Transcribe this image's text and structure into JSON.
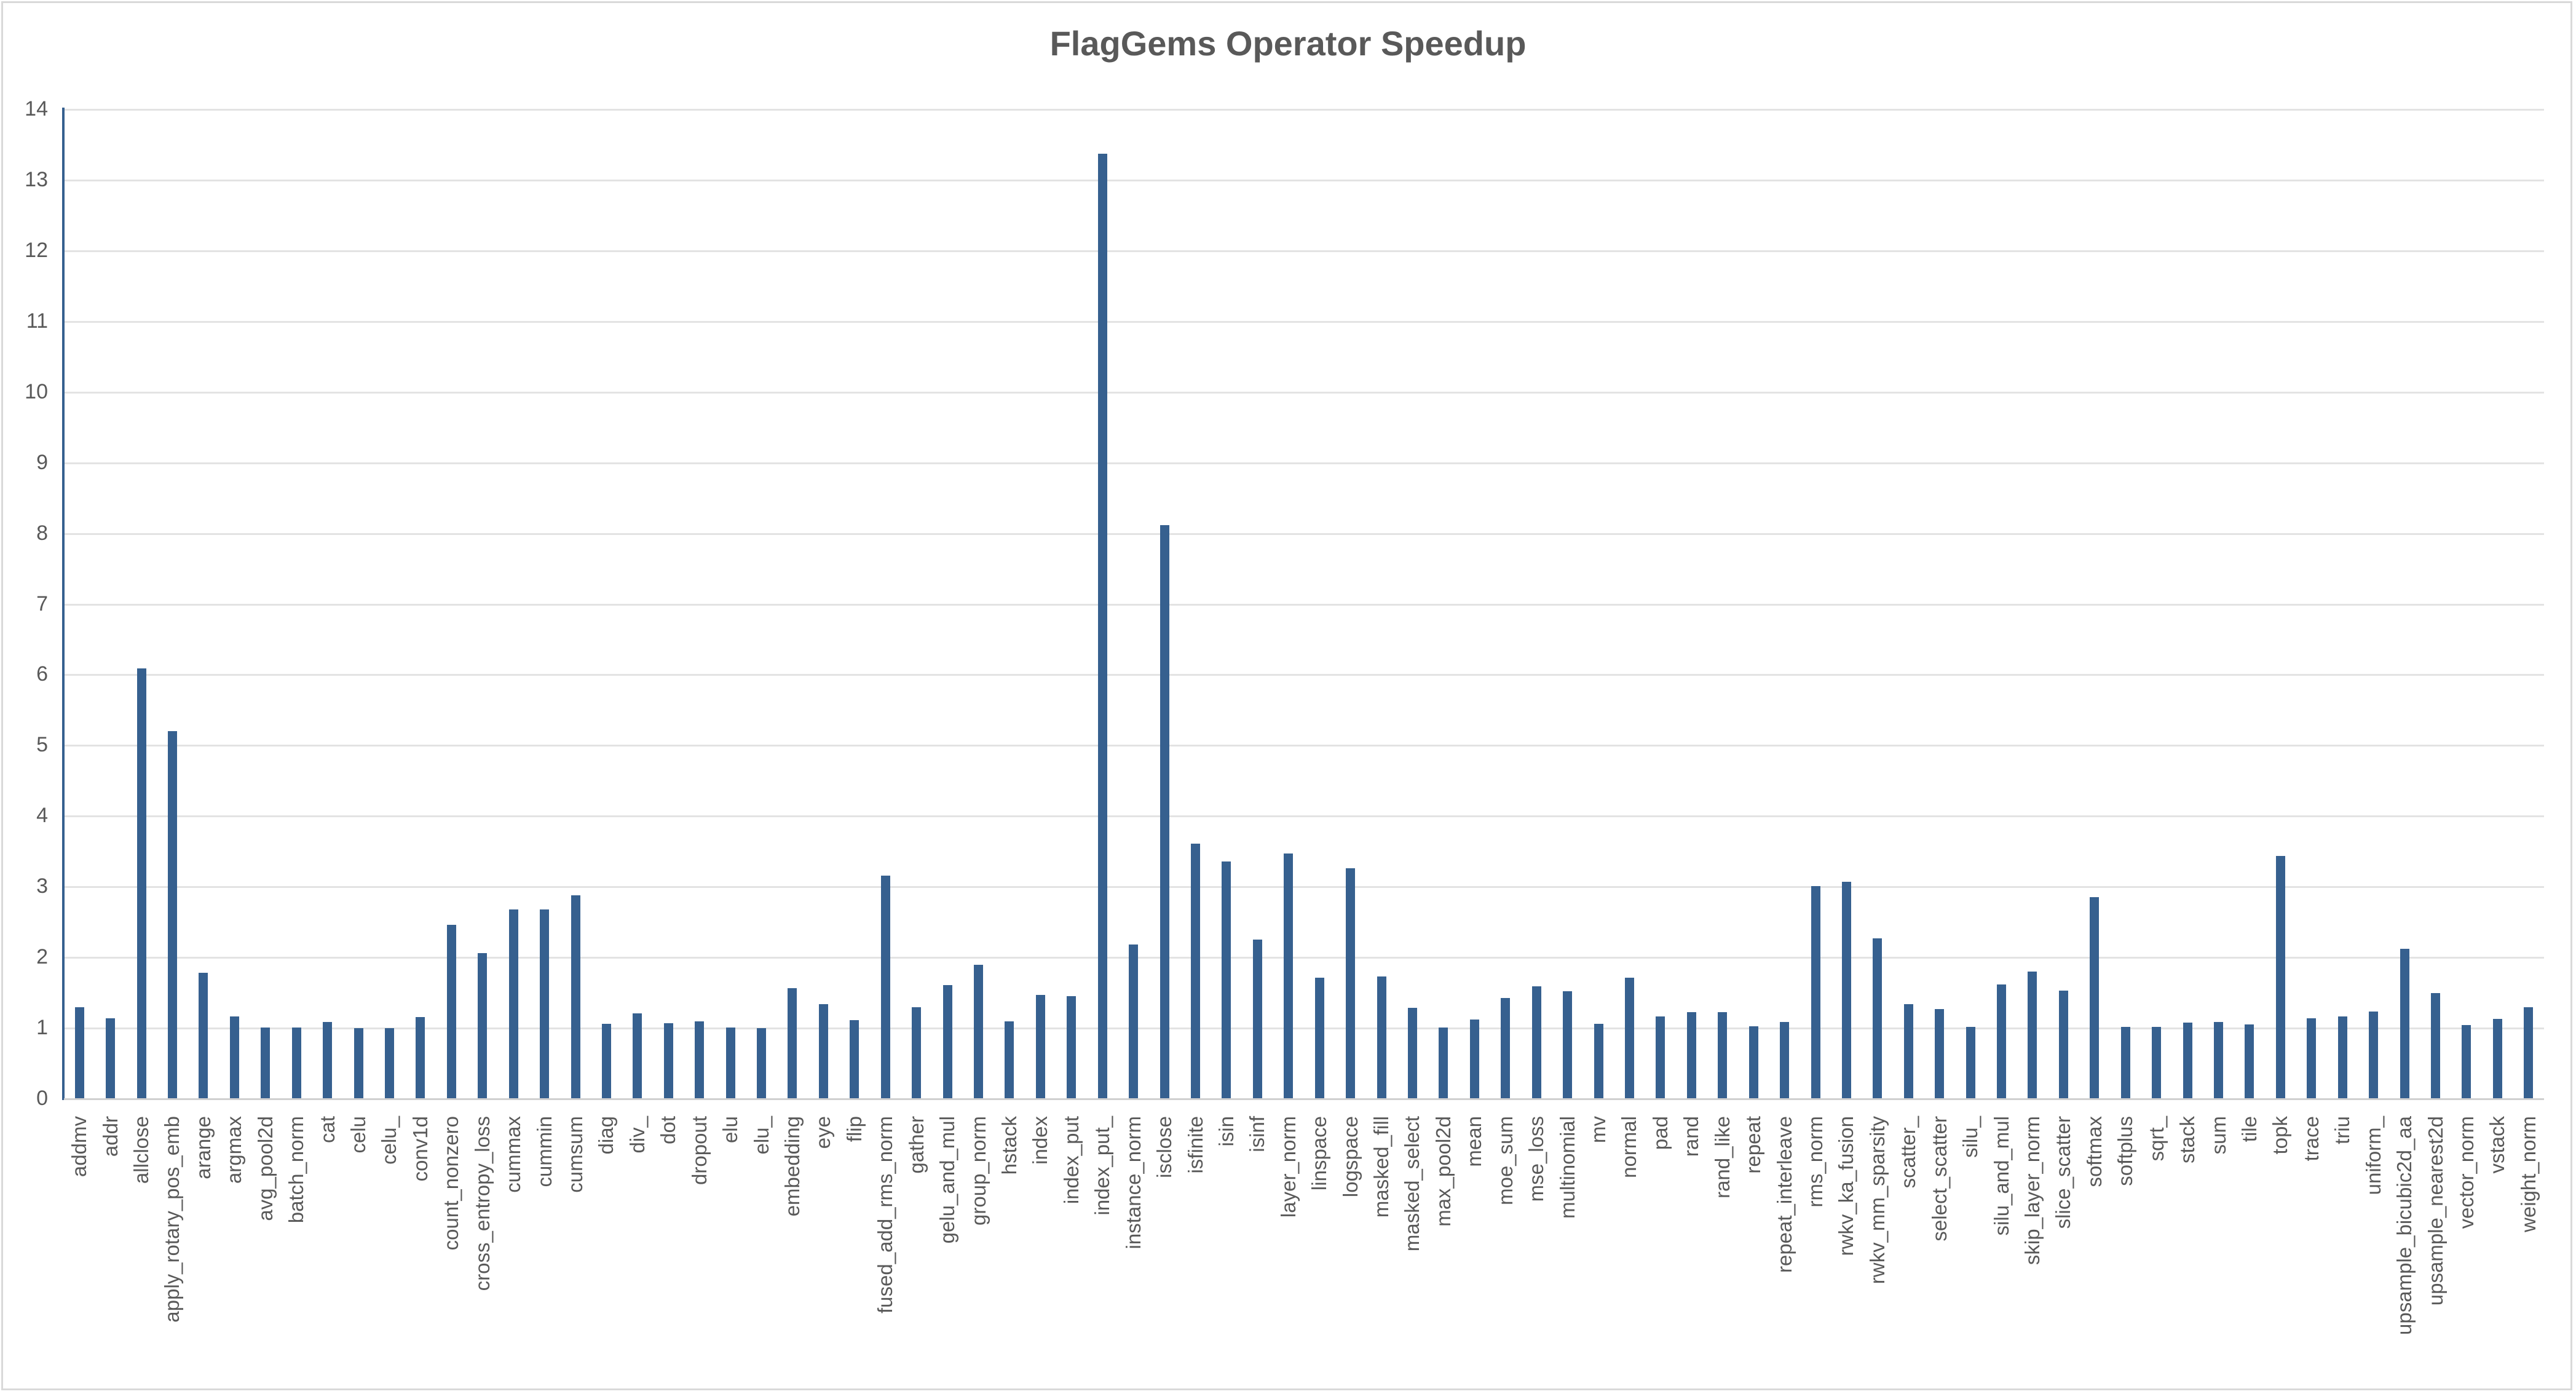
{
  "chart_data": {
    "type": "bar",
    "title": "FlagGems Operator Speedup",
    "xlabel": "",
    "ylabel": "",
    "ylim": [
      0,
      14
    ],
    "yticks": [
      0,
      1,
      2,
      3,
      4,
      5,
      6,
      7,
      8,
      9,
      10,
      11,
      12,
      13,
      14
    ],
    "grid": true,
    "legend": null,
    "bar_color": "#36608f",
    "categories": [
      "addmv",
      "addr",
      "allclose",
      "apply_rotary_pos_emb",
      "arange",
      "argmax",
      "avg_pool2d",
      "batch_norm",
      "cat",
      "celu",
      "celu_",
      "conv1d",
      "count_nonzero",
      "cross_entropy_loss",
      "cummax",
      "cummin",
      "cumsum",
      "diag",
      "div_",
      "dot",
      "dropout",
      "elu",
      "elu_",
      "embedding",
      "eye",
      "flip",
      "fused_add_rms_norm",
      "gather",
      "gelu_and_mul",
      "group_norm",
      "hstack",
      "index",
      "index_put",
      "index_put_",
      "instance_norm",
      "isclose",
      "isfinite",
      "isin",
      "isinf",
      "layer_norm",
      "linspace",
      "logspace",
      "masked_fill",
      "masked_select",
      "max_pool2d",
      "mean",
      "moe_sum",
      "mse_loss",
      "multinomial",
      "mv",
      "normal",
      "pad",
      "rand",
      "rand_like",
      "repeat",
      "repeat_interleave",
      "rms_norm",
      "rwkv_ka_fusion",
      "rwkv_mm_sparsity",
      "scatter_",
      "select_scatter",
      "silu_",
      "silu_and_mul",
      "skip_layer_norm",
      "slice_scatter",
      "softmax",
      "softplus",
      "sqrt_",
      "stack",
      "sum",
      "tile",
      "topk",
      "trace",
      "triu",
      "uniform_",
      "upsample_bicubic2d_aa",
      "upsample_nearest2d",
      "vector_norm",
      "vstack",
      "weight_norm"
    ],
    "values": [
      1.3,
      1.14,
      6.09,
      5.2,
      1.78,
      1.17,
      1.01,
      1.01,
      1.09,
      1.0,
      1.0,
      1.16,
      2.46,
      2.06,
      2.68,
      2.68,
      2.88,
      1.06,
      1.21,
      1.07,
      1.1,
      1.01,
      1.0,
      1.57,
      1.34,
      1.11,
      3.16,
      1.3,
      1.61,
      1.9,
      1.1,
      1.47,
      1.45,
      13.37,
      2.18,
      8.12,
      3.61,
      3.36,
      2.25,
      3.47,
      1.71,
      3.26,
      1.73,
      1.29,
      1.01,
      1.12,
      1.43,
      1.59,
      1.52,
      1.06,
      1.71,
      1.17,
      1.23,
      1.23,
      1.03,
      1.09,
      3.01,
      3.07,
      2.27,
      1.34,
      1.27,
      1.02,
      1.62,
      1.8,
      1.53,
      2.85,
      1.02,
      1.02,
      1.08,
      1.09,
      1.05,
      3.44,
      1.14,
      1.17,
      1.24,
      2.12,
      1.5,
      1.04,
      1.13,
      1.3
    ]
  }
}
